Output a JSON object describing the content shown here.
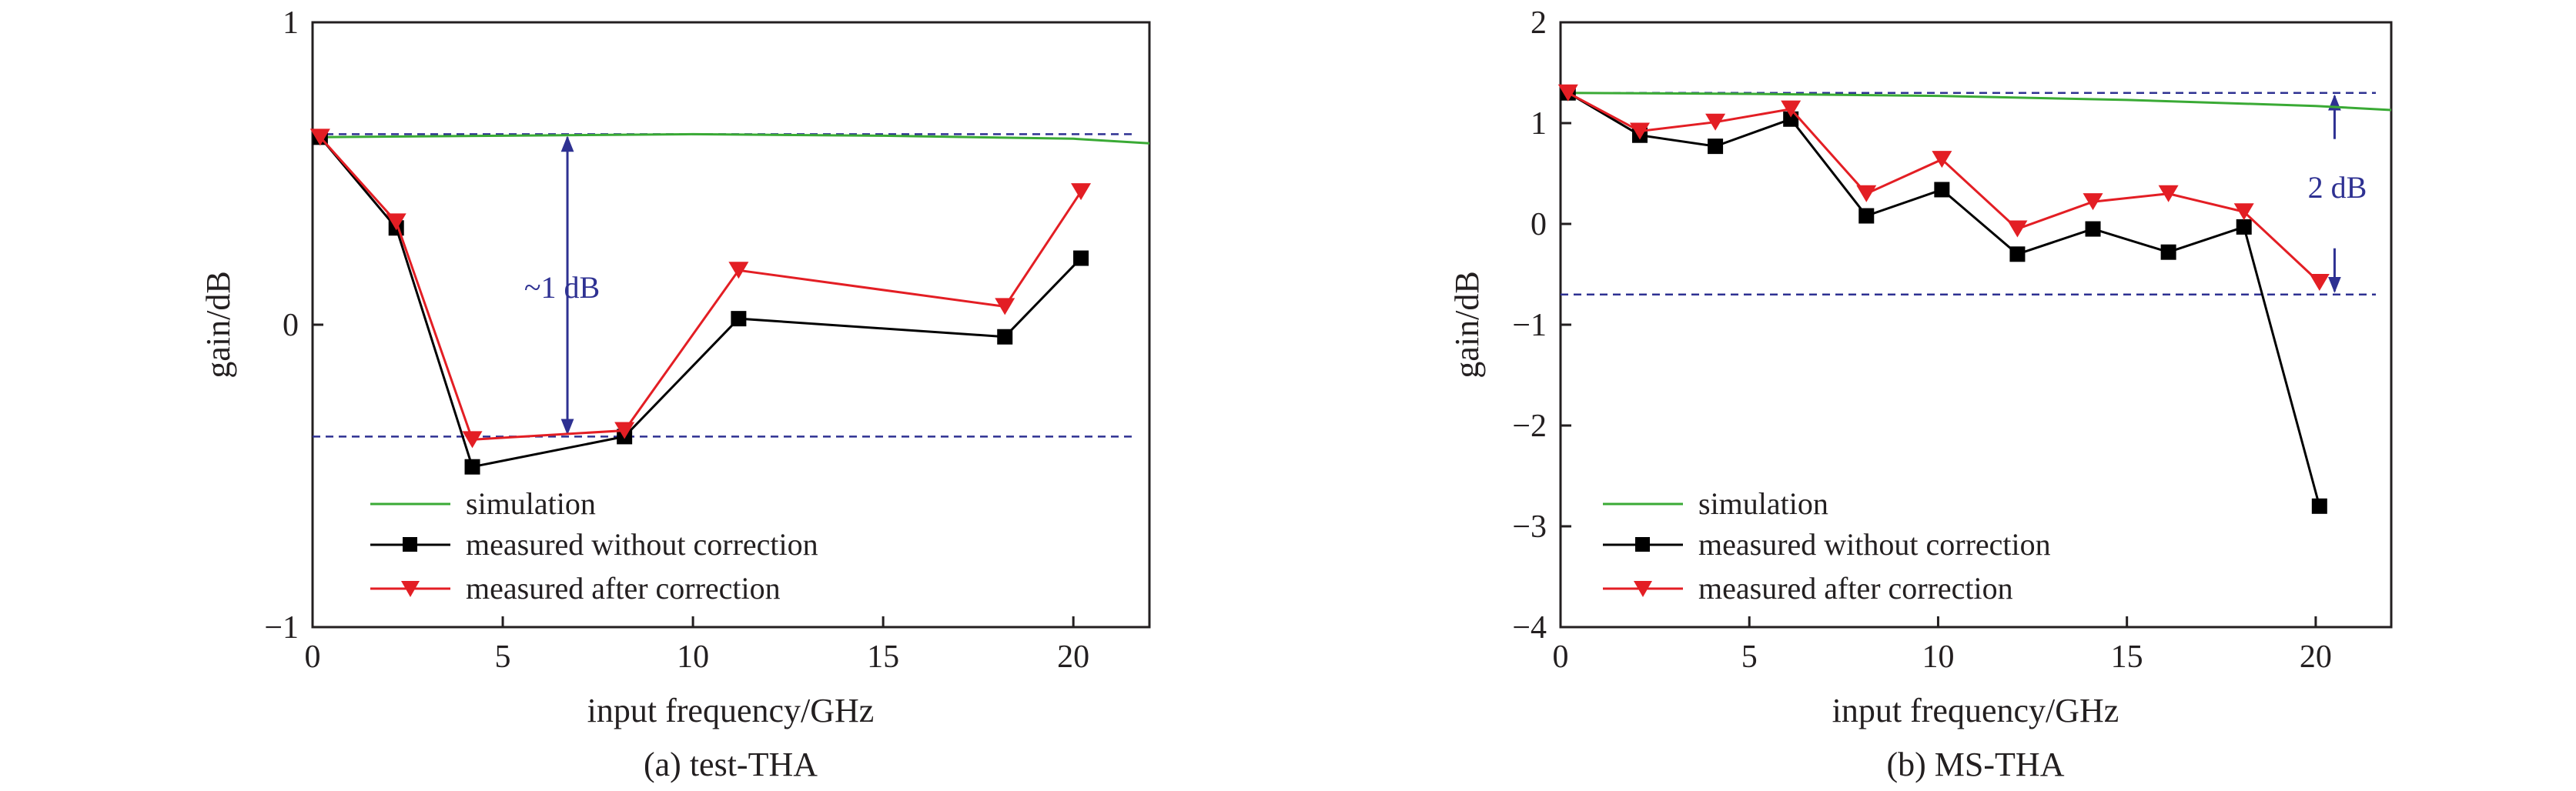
{
  "chart_data": [
    {
      "type": "line",
      "caption": "(a) test-THA",
      "xlabel": "input frequency/GHz",
      "ylabel": "gain/dB",
      "xlim": [
        0,
        22
      ],
      "ylim": [
        -1,
        1
      ],
      "xticks": [
        0,
        5,
        10,
        15,
        20
      ],
      "yticks": [
        -1,
        0,
        1
      ],
      "xtick_labels": [
        "0",
        "5",
        "10",
        "15",
        "20"
      ],
      "ytick_labels": [
        "−1",
        "0",
        "1"
      ],
      "grid": false,
      "legend_position": "bottom-left",
      "series": [
        {
          "name": "simulation",
          "color": "#3aaa35",
          "marker": "none",
          "x": [
            0.2,
            5,
            10,
            15,
            20,
            22
          ],
          "y": [
            0.62,
            0.625,
            0.63,
            0.625,
            0.615,
            0.6
          ]
        },
        {
          "name": "measured without correction",
          "color": "#000000",
          "marker": "square",
          "x": [
            0.2,
            2.2,
            4.2,
            8.2,
            11.2,
            18.2,
            20.2
          ],
          "y": [
            0.62,
            0.32,
            -0.47,
            -0.37,
            0.02,
            -0.04,
            0.22
          ]
        },
        {
          "name": "measured after  correction",
          "color": "#e31e24",
          "marker": "triangle-down",
          "x": [
            0.2,
            2.2,
            4.2,
            8.2,
            11.2,
            18.2,
            20.2
          ],
          "y": [
            0.62,
            0.34,
            -0.38,
            -0.35,
            0.18,
            0.06,
            0.44
          ]
        }
      ],
      "reference_lines": [
        {
          "y": 0.63,
          "color": "#2e3192",
          "style": "dashed"
        },
        {
          "y": -0.37,
          "color": "#2e3192",
          "style": "dashed"
        }
      ],
      "annotation": {
        "text": "~1 dB",
        "x": 6.7,
        "y_from": 0.63,
        "y_to": -0.37,
        "color": "#2e3192"
      }
    },
    {
      "type": "line",
      "caption": "(b) MS-THA",
      "xlabel": "input frequency/GHz",
      "ylabel": "gain/dB",
      "xlim": [
        0,
        22
      ],
      "ylim": [
        -4,
        2
      ],
      "xticks": [
        0,
        5,
        10,
        15,
        20
      ],
      "yticks": [
        -4,
        -3,
        -2,
        -1,
        0,
        1,
        2
      ],
      "xtick_labels": [
        "0",
        "5",
        "10",
        "15",
        "20"
      ],
      "ytick_labels": [
        "−4",
        "−3",
        "−2",
        "−1",
        "0",
        "1",
        "2"
      ],
      "grid": false,
      "legend_position": "bottom-left",
      "series": [
        {
          "name": "simulation",
          "color": "#3aaa35",
          "marker": "none",
          "x": [
            0.2,
            5,
            10,
            15,
            20,
            22
          ],
          "y": [
            1.3,
            1.29,
            1.27,
            1.23,
            1.17,
            1.13
          ]
        },
        {
          "name": "measured without correction",
          "color": "#000000",
          "marker": "square",
          "x": [
            0.2,
            2.1,
            4.1,
            6.1,
            8.1,
            10.1,
            12.1,
            14.1,
            16.1,
            18.1,
            20.1
          ],
          "y": [
            1.3,
            0.88,
            0.77,
            1.04,
            0.08,
            0.34,
            -0.3,
            -0.05,
            -0.28,
            -0.03,
            -2.8
          ]
        },
        {
          "name": "measured after  correction",
          "color": "#e31e24",
          "marker": "triangle-down",
          "x": [
            0.2,
            2.1,
            4.1,
            6.1,
            8.1,
            10.1,
            12.1,
            14.1,
            16.1,
            18.1,
            20.1
          ],
          "y": [
            1.3,
            0.92,
            1.01,
            1.14,
            0.3,
            0.64,
            -0.05,
            0.22,
            0.3,
            0.12,
            -0.58
          ]
        }
      ],
      "reference_lines": [
        {
          "y": 1.3,
          "color": "#2e3192",
          "style": "dashed"
        },
        {
          "y": -0.7,
          "color": "#2e3192",
          "style": "dashed"
        }
      ],
      "annotation": {
        "text": "2 dB",
        "x": 20.5,
        "y_from": 1.3,
        "y_to": -0.7,
        "color": "#2e3192"
      }
    }
  ]
}
